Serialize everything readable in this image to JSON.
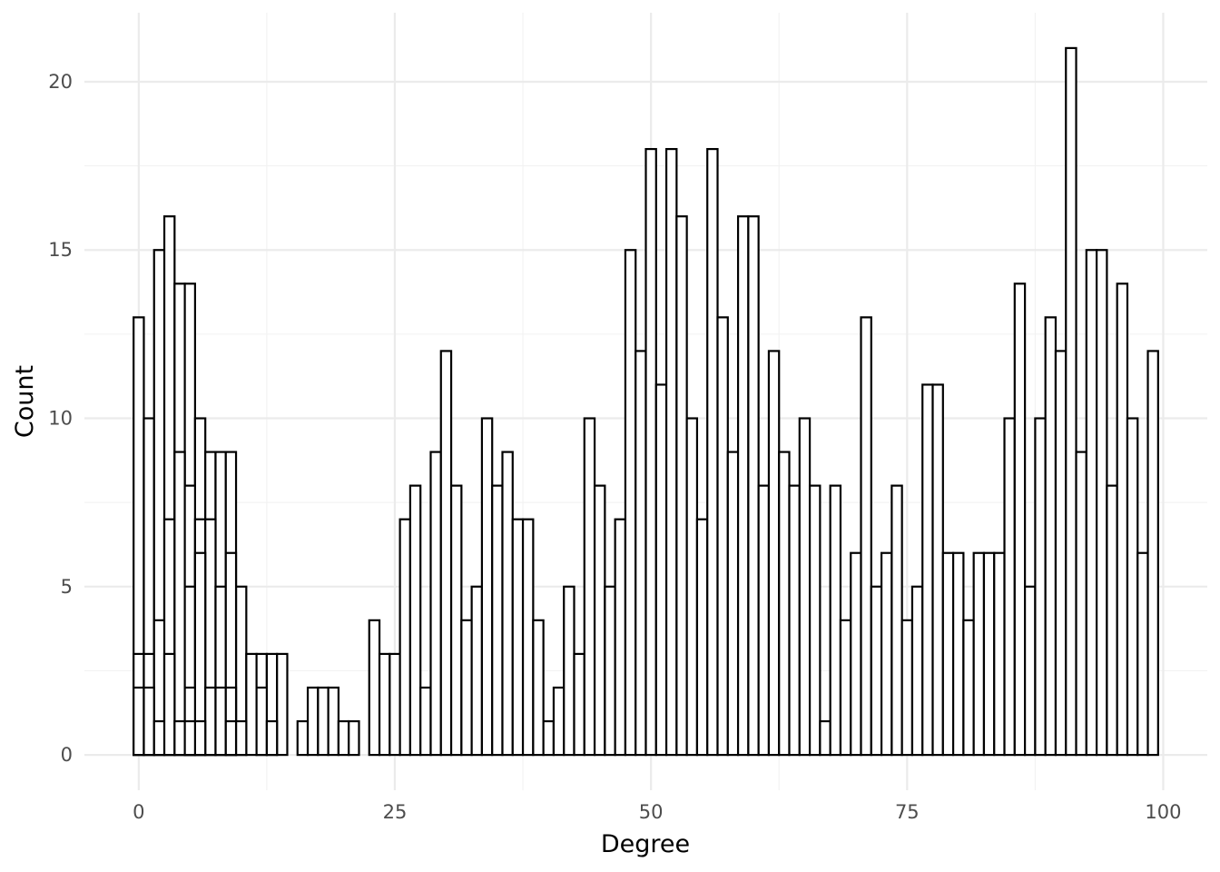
{
  "chart_data": {
    "type": "bar",
    "subtype": "histogram",
    "title": "",
    "xlabel": "Degree",
    "ylabel": "Count",
    "xlim": [
      -5.3,
      104.3
    ],
    "ylim": [
      -1.05,
      22.05
    ],
    "x_ticks": [
      0,
      25,
      50,
      75,
      100
    ],
    "y_ticks": [
      0,
      5,
      10,
      15,
      20
    ],
    "grid": true,
    "legend": "none",
    "bar_fill": "#ffffff",
    "bar_outline": "#000000",
    "layers": [
      {
        "name": "outer",
        "bins": [
          {
            "x": 0,
            "y": 13
          },
          {
            "x": 1,
            "y": 10
          },
          {
            "x": 2,
            "y": 15
          },
          {
            "x": 3,
            "y": 16
          },
          {
            "x": 4,
            "y": 14
          },
          {
            "x": 5,
            "y": 14
          },
          {
            "x": 6,
            "y": 10
          },
          {
            "x": 7,
            "y": 9
          },
          {
            "x": 8,
            "y": 9
          },
          {
            "x": 9,
            "y": 9
          },
          {
            "x": 10,
            "y": 5
          },
          {
            "x": 11,
            "y": 3
          },
          {
            "x": 12,
            "y": 3
          },
          {
            "x": 13,
            "y": 3
          },
          {
            "x": 14,
            "y": 3
          },
          {
            "x": 16,
            "y": 1
          },
          {
            "x": 17,
            "y": 2
          },
          {
            "x": 18,
            "y": 2
          },
          {
            "x": 19,
            "y": 2
          },
          {
            "x": 20,
            "y": 1
          },
          {
            "x": 21,
            "y": 1
          },
          {
            "x": 23,
            "y": 4
          },
          {
            "x": 24,
            "y": 3
          },
          {
            "x": 25,
            "y": 3
          },
          {
            "x": 26,
            "y": 7
          },
          {
            "x": 27,
            "y": 8
          },
          {
            "x": 28,
            "y": 2
          },
          {
            "x": 29,
            "y": 9
          },
          {
            "x": 30,
            "y": 12
          },
          {
            "x": 31,
            "y": 8
          },
          {
            "x": 32,
            "y": 4
          },
          {
            "x": 33,
            "y": 5
          },
          {
            "x": 34,
            "y": 10
          },
          {
            "x": 35,
            "y": 8
          },
          {
            "x": 36,
            "y": 9
          },
          {
            "x": 37,
            "y": 7
          },
          {
            "x": 38,
            "y": 7
          },
          {
            "x": 39,
            "y": 4
          },
          {
            "x": 40,
            "y": 1
          },
          {
            "x": 41,
            "y": 2
          },
          {
            "x": 42,
            "y": 5
          },
          {
            "x": 43,
            "y": 3
          },
          {
            "x": 44,
            "y": 10
          },
          {
            "x": 45,
            "y": 8
          },
          {
            "x": 46,
            "y": 5
          },
          {
            "x": 47,
            "y": 7
          },
          {
            "x": 48,
            "y": 15
          },
          {
            "x": 49,
            "y": 12
          },
          {
            "x": 50,
            "y": 18
          },
          {
            "x": 51,
            "y": 11
          },
          {
            "x": 52,
            "y": 18
          },
          {
            "x": 53,
            "y": 16
          },
          {
            "x": 54,
            "y": 10
          },
          {
            "x": 55,
            "y": 7
          },
          {
            "x": 56,
            "y": 18
          },
          {
            "x": 57,
            "y": 13
          },
          {
            "x": 58,
            "y": 9
          },
          {
            "x": 59,
            "y": 16
          },
          {
            "x": 60,
            "y": 16
          },
          {
            "x": 61,
            "y": 8
          },
          {
            "x": 62,
            "y": 12
          },
          {
            "x": 63,
            "y": 9
          },
          {
            "x": 64,
            "y": 8
          },
          {
            "x": 65,
            "y": 10
          },
          {
            "x": 66,
            "y": 8
          },
          {
            "x": 67,
            "y": 1
          },
          {
            "x": 68,
            "y": 8
          },
          {
            "x": 69,
            "y": 4
          },
          {
            "x": 70,
            "y": 6
          },
          {
            "x": 71,
            "y": 13
          },
          {
            "x": 72,
            "y": 5
          },
          {
            "x": 73,
            "y": 6
          },
          {
            "x": 74,
            "y": 8
          },
          {
            "x": 75,
            "y": 4
          },
          {
            "x": 76,
            "y": 5
          },
          {
            "x": 77,
            "y": 11
          },
          {
            "x": 78,
            "y": 11
          },
          {
            "x": 79,
            "y": 6
          },
          {
            "x": 80,
            "y": 6
          },
          {
            "x": 81,
            "y": 4
          },
          {
            "x": 82,
            "y": 6
          },
          {
            "x": 83,
            "y": 6
          },
          {
            "x": 84,
            "y": 6
          },
          {
            "x": 85,
            "y": 10
          },
          {
            "x": 86,
            "y": 14
          },
          {
            "x": 87,
            "y": 5
          },
          {
            "x": 88,
            "y": 10
          },
          {
            "x": 89,
            "y": 13
          },
          {
            "x": 90,
            "y": 12
          },
          {
            "x": 91,
            "y": 21
          },
          {
            "x": 92,
            "y": 9
          },
          {
            "x": 93,
            "y": 15
          },
          {
            "x": 94,
            "y": 15
          },
          {
            "x": 95,
            "y": 8
          },
          {
            "x": 96,
            "y": 14
          },
          {
            "x": 97,
            "y": 10
          },
          {
            "x": 98,
            "y": 6
          },
          {
            "x": 99,
            "y": 12
          }
        ]
      },
      {
        "name": "inner-1",
        "bins": [
          {
            "x": 0,
            "y": 3
          },
          {
            "x": 1,
            "y": 3
          },
          {
            "x": 2,
            "y": 4
          },
          {
            "x": 3,
            "y": 7
          },
          {
            "x": 4,
            "y": 9
          },
          {
            "x": 5,
            "y": 8
          },
          {
            "x": 6,
            "y": 7
          },
          {
            "x": 7,
            "y": 7
          },
          {
            "x": 8,
            "y": 5
          },
          {
            "x": 9,
            "y": 6
          },
          {
            "x": 12,
            "y": 2
          }
        ]
      },
      {
        "name": "inner-2",
        "bins": [
          {
            "x": 0,
            "y": 2
          },
          {
            "x": 1,
            "y": 2
          },
          {
            "x": 2,
            "y": 1
          },
          {
            "x": 3,
            "y": 3
          },
          {
            "x": 4,
            "y": 1
          },
          {
            "x": 5,
            "y": 5
          },
          {
            "x": 6,
            "y": 6
          },
          {
            "x": 7,
            "y": 2
          },
          {
            "x": 8,
            "y": 2
          },
          {
            "x": 9,
            "y": 2
          },
          {
            "x": 10,
            "y": 1
          },
          {
            "x": 13,
            "y": 1
          }
        ]
      },
      {
        "name": "inner-3",
        "bins": [
          {
            "x": 5,
            "y": 2
          },
          {
            "x": 6,
            "y": 1
          },
          {
            "x": 9,
            "y": 1
          }
        ]
      },
      {
        "name": "inner-4",
        "bins": [
          {
            "x": 5,
            "y": 1
          }
        ]
      }
    ]
  }
}
